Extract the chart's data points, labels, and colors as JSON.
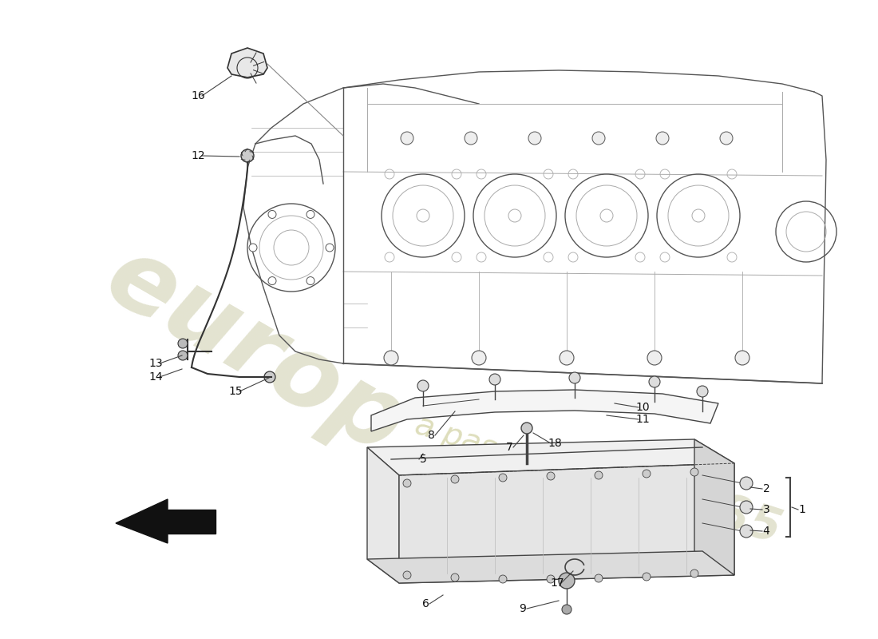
{
  "background_color": "#ffffff",
  "line_color": "#444444",
  "light_line_color": "#aaaaaa",
  "label_color": "#111111",
  "label_fontsize": 10,
  "watermark_color_europ": "#d0d0b0",
  "watermark_color_passion": "#d8d8b0",
  "watermark_color_1985": "#d8d8b0",
  "arrow_color": "#111111",
  "part_numbers": [
    "1",
    "2",
    "3",
    "4",
    "5",
    "6",
    "7",
    "8",
    "9",
    "10",
    "11",
    "12",
    "13",
    "14",
    "15",
    "16",
    "17",
    "18"
  ]
}
